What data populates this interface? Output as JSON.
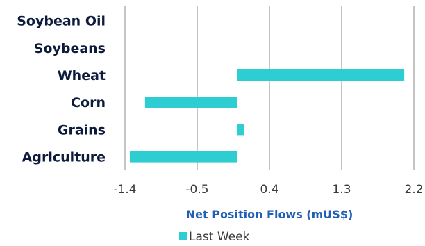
{
  "chart_data": {
    "type": "bar",
    "orientation": "horizontal",
    "categories": [
      "Soybean Oil",
      "Soybeans",
      "Wheat",
      "Corn",
      "Grains",
      "Agriculture"
    ],
    "series": [
      {
        "name": "Last Week",
        "color": "#2ecdd2",
        "values": [
          0,
          0,
          2.08,
          -1.15,
          0.08,
          -1.34
        ]
      }
    ],
    "xlabel": "Net Position Flows (mUS$)",
    "xlim": [
      -1.4,
      2.2
    ],
    "xticks": [
      -1.4,
      -0.5,
      0.4,
      1.3,
      2.2
    ],
    "xtick_labels": [
      "-1.4",
      "-0.5",
      "0.4",
      "1.3",
      "2.2"
    ],
    "grid": true,
    "legend_position": "bottom"
  }
}
